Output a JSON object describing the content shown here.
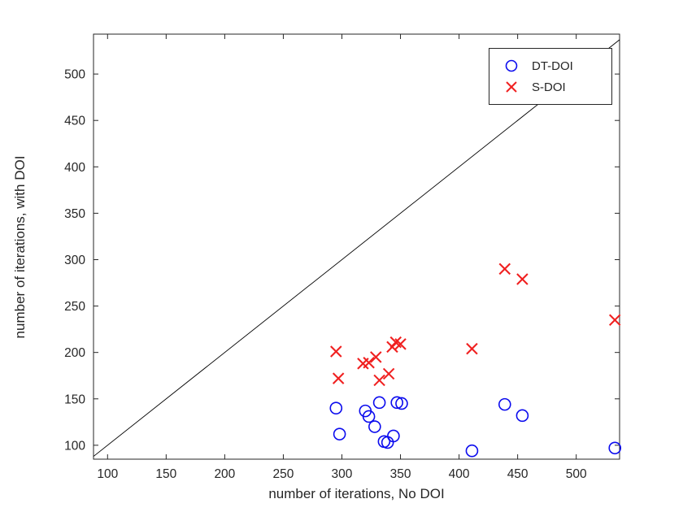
{
  "chart_data": {
    "type": "scatter",
    "title": "",
    "xlabel": "number of iterations, No DOI",
    "ylabel": "number of iterations, with DOI",
    "xlim": [
      88,
      537
    ],
    "ylim": [
      85,
      543
    ],
    "xticks": [
      100,
      150,
      200,
      250,
      300,
      350,
      400,
      450,
      500
    ],
    "yticks": [
      100,
      150,
      200,
      250,
      300,
      350,
      400,
      450,
      500
    ],
    "grid": false,
    "axes_color": "#262626",
    "identity_line": {
      "color": "#000000",
      "x": [
        88,
        537
      ],
      "y": [
        88,
        537
      ]
    },
    "legend": {
      "position": "top-right",
      "entries": [
        {
          "label": "DT-DOI",
          "marker": "circle",
          "color": "#0b0bee"
        },
        {
          "label": "S-DOI",
          "marker": "x",
          "color": "#f02020"
        }
      ]
    },
    "series": [
      {
        "name": "DT-DOI",
        "marker": "circle",
        "color": "#0b0bee",
        "points": [
          [
            295,
            140
          ],
          [
            298,
            112
          ],
          [
            320,
            137
          ],
          [
            323,
            131
          ],
          [
            328,
            120
          ],
          [
            332,
            146
          ],
          [
            336,
            104
          ],
          [
            339,
            103
          ],
          [
            344,
            110
          ],
          [
            347,
            146
          ],
          [
            351,
            145
          ],
          [
            411,
            94
          ],
          [
            439,
            144
          ],
          [
            454,
            132
          ],
          [
            533,
            97
          ]
        ]
      },
      {
        "name": "S-DOI",
        "marker": "x",
        "color": "#f02020",
        "points": [
          [
            295,
            201
          ],
          [
            297,
            172
          ],
          [
            318,
            188
          ],
          [
            323,
            189
          ],
          [
            329,
            195
          ],
          [
            332,
            170
          ],
          [
            340,
            177
          ],
          [
            343,
            206
          ],
          [
            346,
            211
          ],
          [
            350,
            209
          ],
          [
            411,
            204
          ],
          [
            439,
            290
          ],
          [
            454,
            279
          ],
          [
            533,
            235
          ]
        ]
      }
    ]
  }
}
